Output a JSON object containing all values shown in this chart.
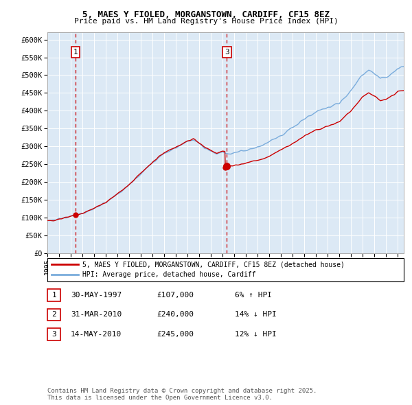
{
  "title": "5, MAES Y FIOLED, MORGANSTOWN, CARDIFF, CF15 8EZ",
  "subtitle": "Price paid vs. HM Land Registry's House Price Index (HPI)",
  "ylabel_ticks": [
    "£0",
    "£50K",
    "£100K",
    "£150K",
    "£200K",
    "£250K",
    "£300K",
    "£350K",
    "£400K",
    "£450K",
    "£500K",
    "£550K",
    "£600K"
  ],
  "ytick_values": [
    0,
    50000,
    100000,
    150000,
    200000,
    250000,
    300000,
    350000,
    400000,
    450000,
    500000,
    550000,
    600000
  ],
  "legend_line1": "5, MAES Y FIOLED, MORGANSTOWN, CARDIFF, CF15 8EZ (detached house)",
  "legend_line2": "HPI: Average price, detached house, Cardiff",
  "sale_color": "#cc0000",
  "hpi_color": "#7aacdc",
  "annotation_entries": [
    {
      "num": 1,
      "date": "30-MAY-1997",
      "price": "£107,000",
      "change": "6% ↑ HPI"
    },
    {
      "num": 2,
      "date": "31-MAR-2010",
      "price": "£240,000",
      "change": "14% ↓ HPI"
    },
    {
      "num": 3,
      "date": "14-MAY-2010",
      "price": "£245,000",
      "change": "12% ↓ HPI"
    }
  ],
  "footer": "Contains HM Land Registry data © Crown copyright and database right 2025.\nThis data is licensed under the Open Government Licence v3.0.",
  "vline1_x": 1997.41,
  "vline3_x": 2010.36,
  "marker1_y": 107000,
  "marker2_y": 240000,
  "marker3_y": 245000,
  "marker1_x": 1997.41,
  "marker2_x": 2010.24,
  "marker3_x": 2010.36,
  "bg_color": "#dce9f5",
  "ylim": [
    0,
    620000
  ],
  "xlim_left": 1995,
  "xlim_right": 2025.5
}
